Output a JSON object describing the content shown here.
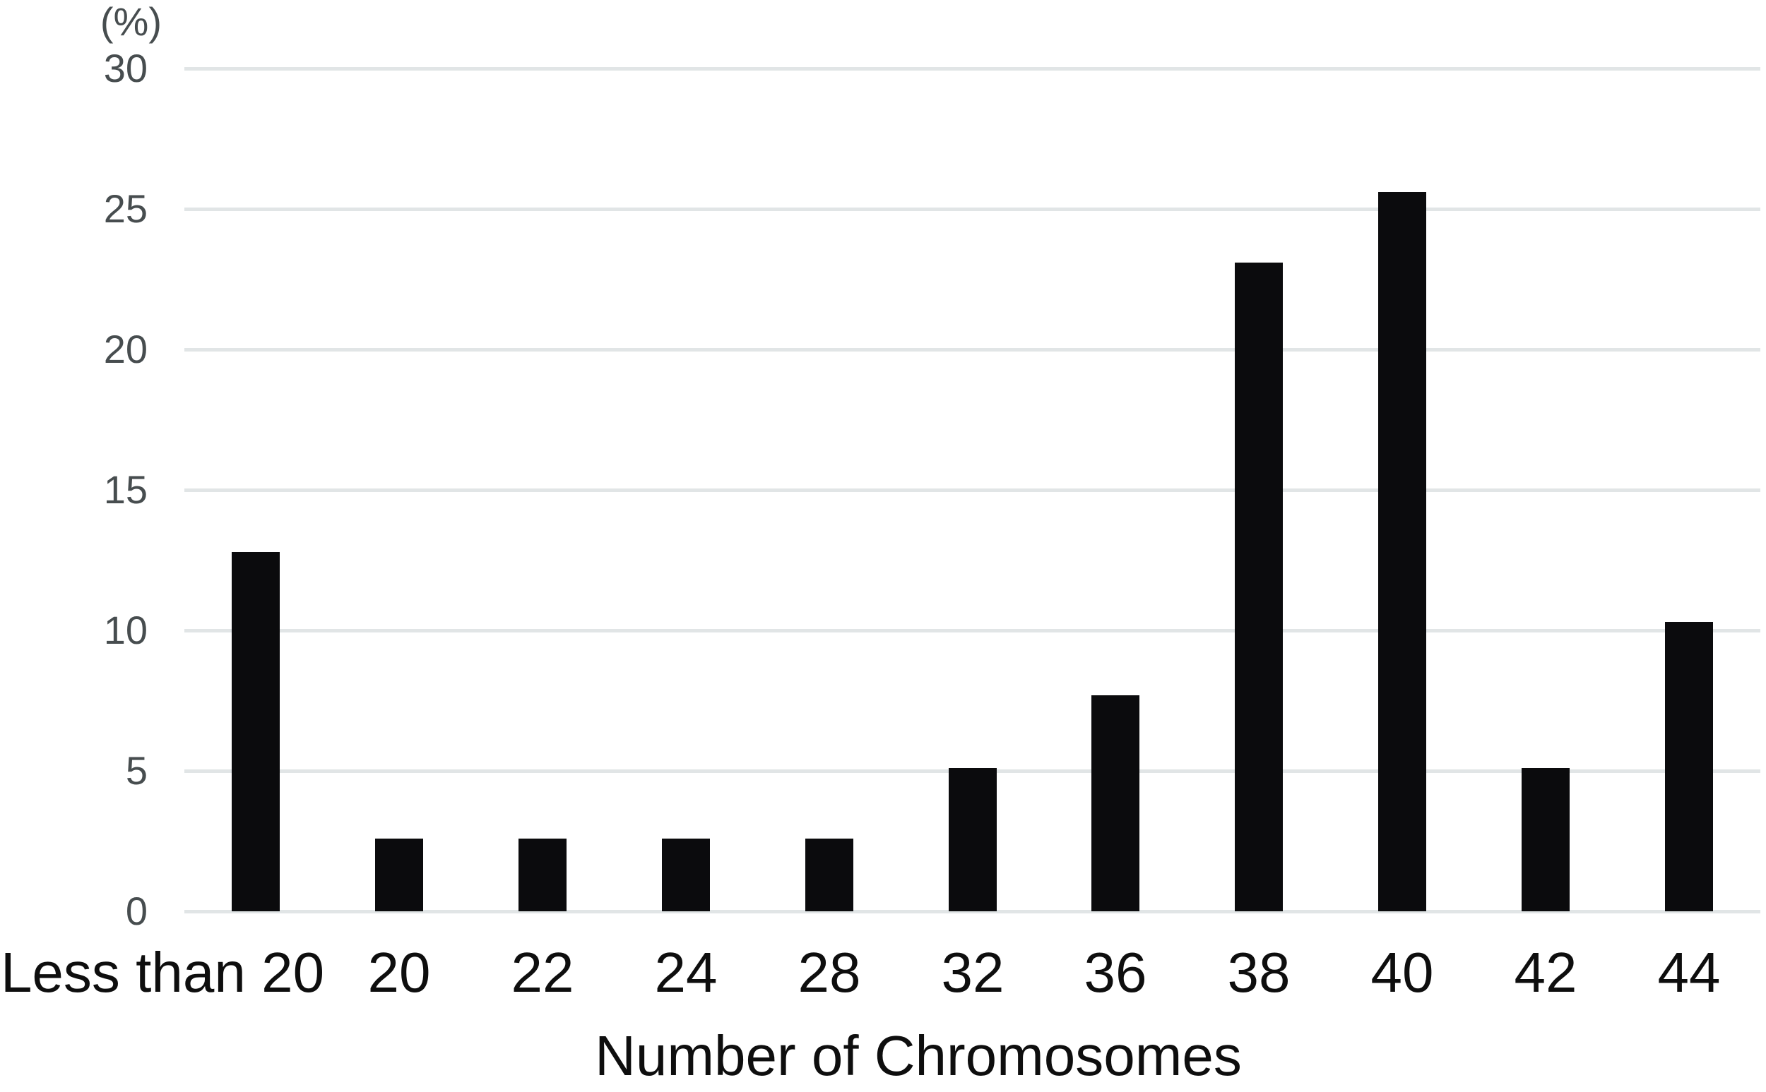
{
  "chart_data": {
    "type": "bar",
    "title": "",
    "xlabel": "Number of Chromosomes",
    "ylabel": "(%)",
    "categories": [
      "Less than 20",
      "20",
      "22",
      "24",
      "28",
      "32",
      "36",
      "38",
      "40",
      "42",
      "44"
    ],
    "values": [
      12.8,
      2.6,
      2.6,
      2.6,
      2.6,
      5.1,
      7.7,
      23.1,
      25.6,
      5.1,
      10.3
    ],
    "ylim": [
      0,
      30
    ],
    "yticks": [
      0,
      5,
      10,
      15,
      20,
      25,
      30
    ],
    "grid": true,
    "legend_position": "none",
    "colors": {
      "bar": "#0b0b0d",
      "gridline": "#e1e5e6",
      "y_tick_text": "#474d4f",
      "x_tick_text": "#0e0e0e"
    }
  }
}
